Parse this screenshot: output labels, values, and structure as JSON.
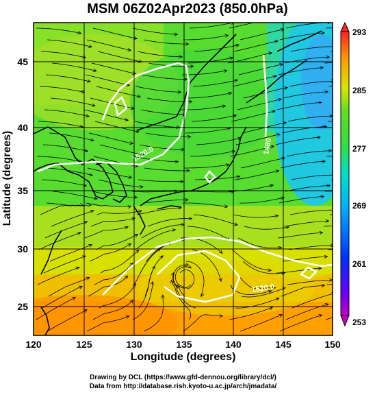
{
  "title": "MSM 06Z02Apr2023 (850.0hPa)",
  "x_axis": {
    "title": "Longitude (degrees)",
    "range": [
      120,
      150
    ],
    "ticks": [
      {
        "value": 120,
        "label": "120"
      },
      {
        "value": 125,
        "label": "125"
      },
      {
        "value": 130,
        "label": "130"
      },
      {
        "value": 135,
        "label": "135"
      },
      {
        "value": 140,
        "label": "140"
      },
      {
        "value": 145,
        "label": "145"
      },
      {
        "value": 150,
        "label": "150"
      }
    ]
  },
  "y_axis": {
    "title": "Latitude  (degrees)",
    "range": [
      22.4,
      48
    ],
    "ticks": [
      {
        "value": 25,
        "label": "25"
      },
      {
        "value": 30,
        "label": "30"
      },
      {
        "value": 35,
        "label": "35"
      },
      {
        "value": 40,
        "label": "40"
      },
      {
        "value": 45,
        "label": "45"
      }
    ]
  },
  "colorbar": {
    "min": 253,
    "max": 293,
    "labels": [
      "293",
      "285",
      "277",
      "269",
      "261",
      "253"
    ],
    "colors": [
      "#ff1a1a",
      "#ff8a00",
      "#d4e600",
      "#2fdc2f",
      "#00d8d0",
      "#00a8ff",
      "#0020ff",
      "#c000c0"
    ]
  },
  "contours": [
    {
      "label": "1520.0"
    },
    {
      "label": "1480"
    },
    {
      "label": "1520.0"
    }
  ],
  "credits": [
    "Drawing by DCL (https://www.gfd-dennou.org/library/dcl/)",
    "Data from http://database.rish.kyoto-u.ac.jp/arch/jmadata/"
  ]
}
